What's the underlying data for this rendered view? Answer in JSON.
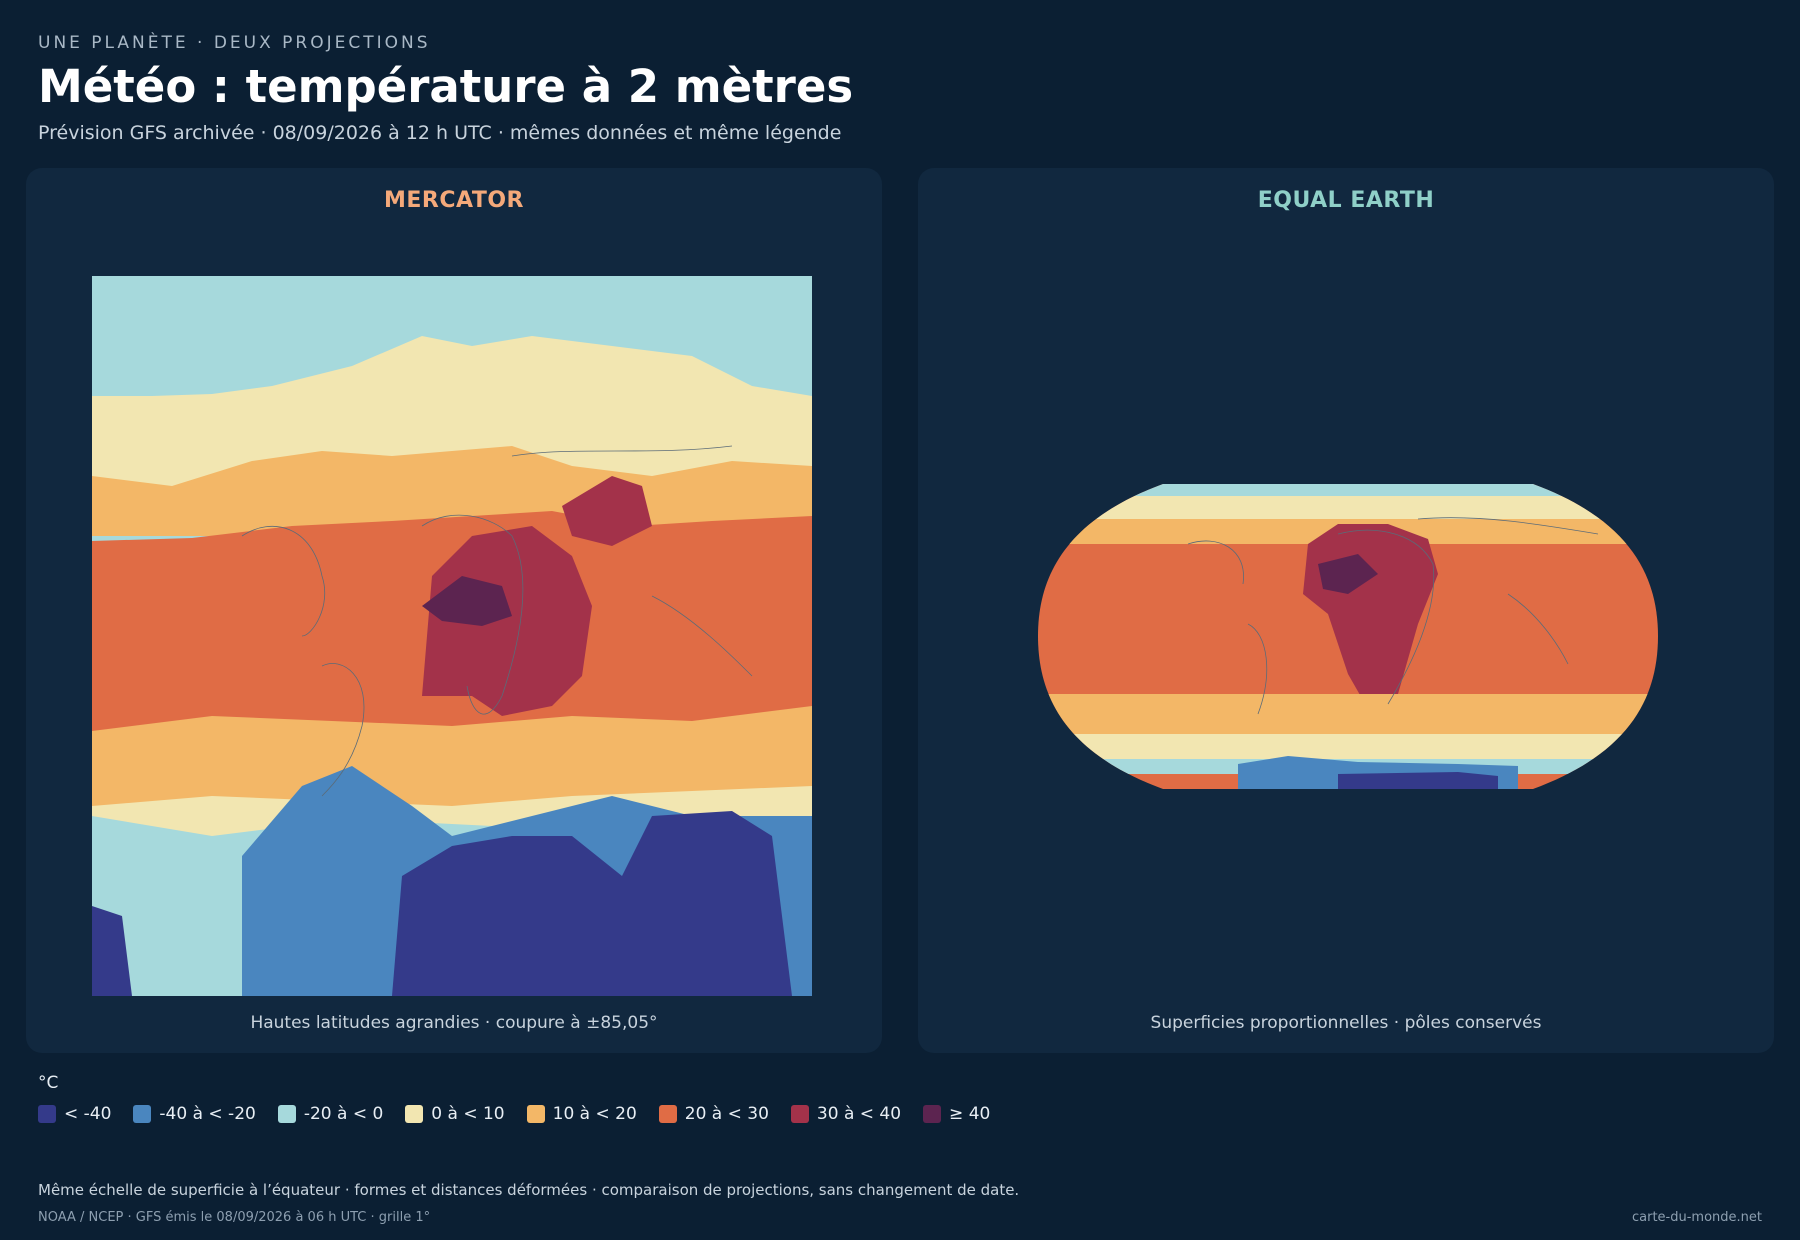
{
  "header": {
    "kicker": "UNE PLANÈTE · DEUX PROJECTIONS",
    "title": "Météo : température à 2 mètres",
    "subtitle": "Prévision GFS archivée · 08/09/2026 à 12 h UTC · mêmes données et même légende"
  },
  "panels": [
    {
      "title": "MERCATOR",
      "caption": "Hautes latitudes agrandies · coupure à ±85,05°"
    },
    {
      "title": "EQUAL EARTH",
      "caption": "Superficies proportionnelles · pôles conservés"
    }
  ],
  "legend": {
    "unit": "°C",
    "items": [
      {
        "label": "< -40",
        "color": "#343a8a"
      },
      {
        "label": "-40 à < -20",
        "color": "#4a86bf"
      },
      {
        "label": "-20 à < 0",
        "color": "#a6d9dc"
      },
      {
        "label": "0 à < 10",
        "color": "#f2e6b1"
      },
      {
        "label": "10 à < 20",
        "color": "#f3b767"
      },
      {
        "label": "20 à < 30",
        "color": "#e06c45"
      },
      {
        "label": "30 à < 40",
        "color": "#a3324a"
      },
      {
        "label": "≥ 40",
        "color": "#5c2450"
      }
    ]
  },
  "footer": {
    "note": "Même échelle de superficie à l’équateur · formes et distances déformées · comparaison de projections, sans changement de date.",
    "source": "NOAA / NCEP · GFS émis le 08/09/2026 à 06 h UTC · grille 1°",
    "site": "carte-du-monde.net"
  }
}
